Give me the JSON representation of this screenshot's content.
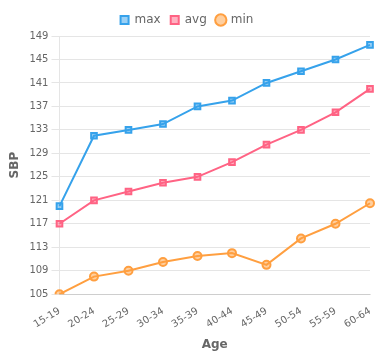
{
  "chart_data": {
    "type": "line",
    "xlabel": "Age",
    "ylabel": "SBP",
    "categories": [
      "15-19",
      "20-24",
      "25-29",
      "30-34",
      "35-39",
      "40-44",
      "45-49",
      "50-54",
      "55-59",
      "60-64"
    ],
    "series": [
      {
        "name": "max",
        "values": [
          120,
          132,
          133,
          134,
          137,
          138,
          141,
          143,
          145,
          147.5
        ],
        "marker": "square"
      },
      {
        "name": "avg",
        "values": [
          117,
          121,
          122.5,
          124,
          125,
          127.5,
          130.5,
          133,
          136,
          140
        ],
        "marker": "square"
      },
      {
        "name": "min",
        "values": [
          105,
          108,
          109,
          110.5,
          111.5,
          112,
          110,
          114.5,
          117,
          120.5
        ],
        "marker": "circle"
      }
    ],
    "ylim": [
      105,
      149
    ],
    "yticks": [
      105,
      109,
      113,
      117,
      121,
      125,
      129,
      133,
      137,
      141,
      145,
      149
    ],
    "grid": true
  }
}
